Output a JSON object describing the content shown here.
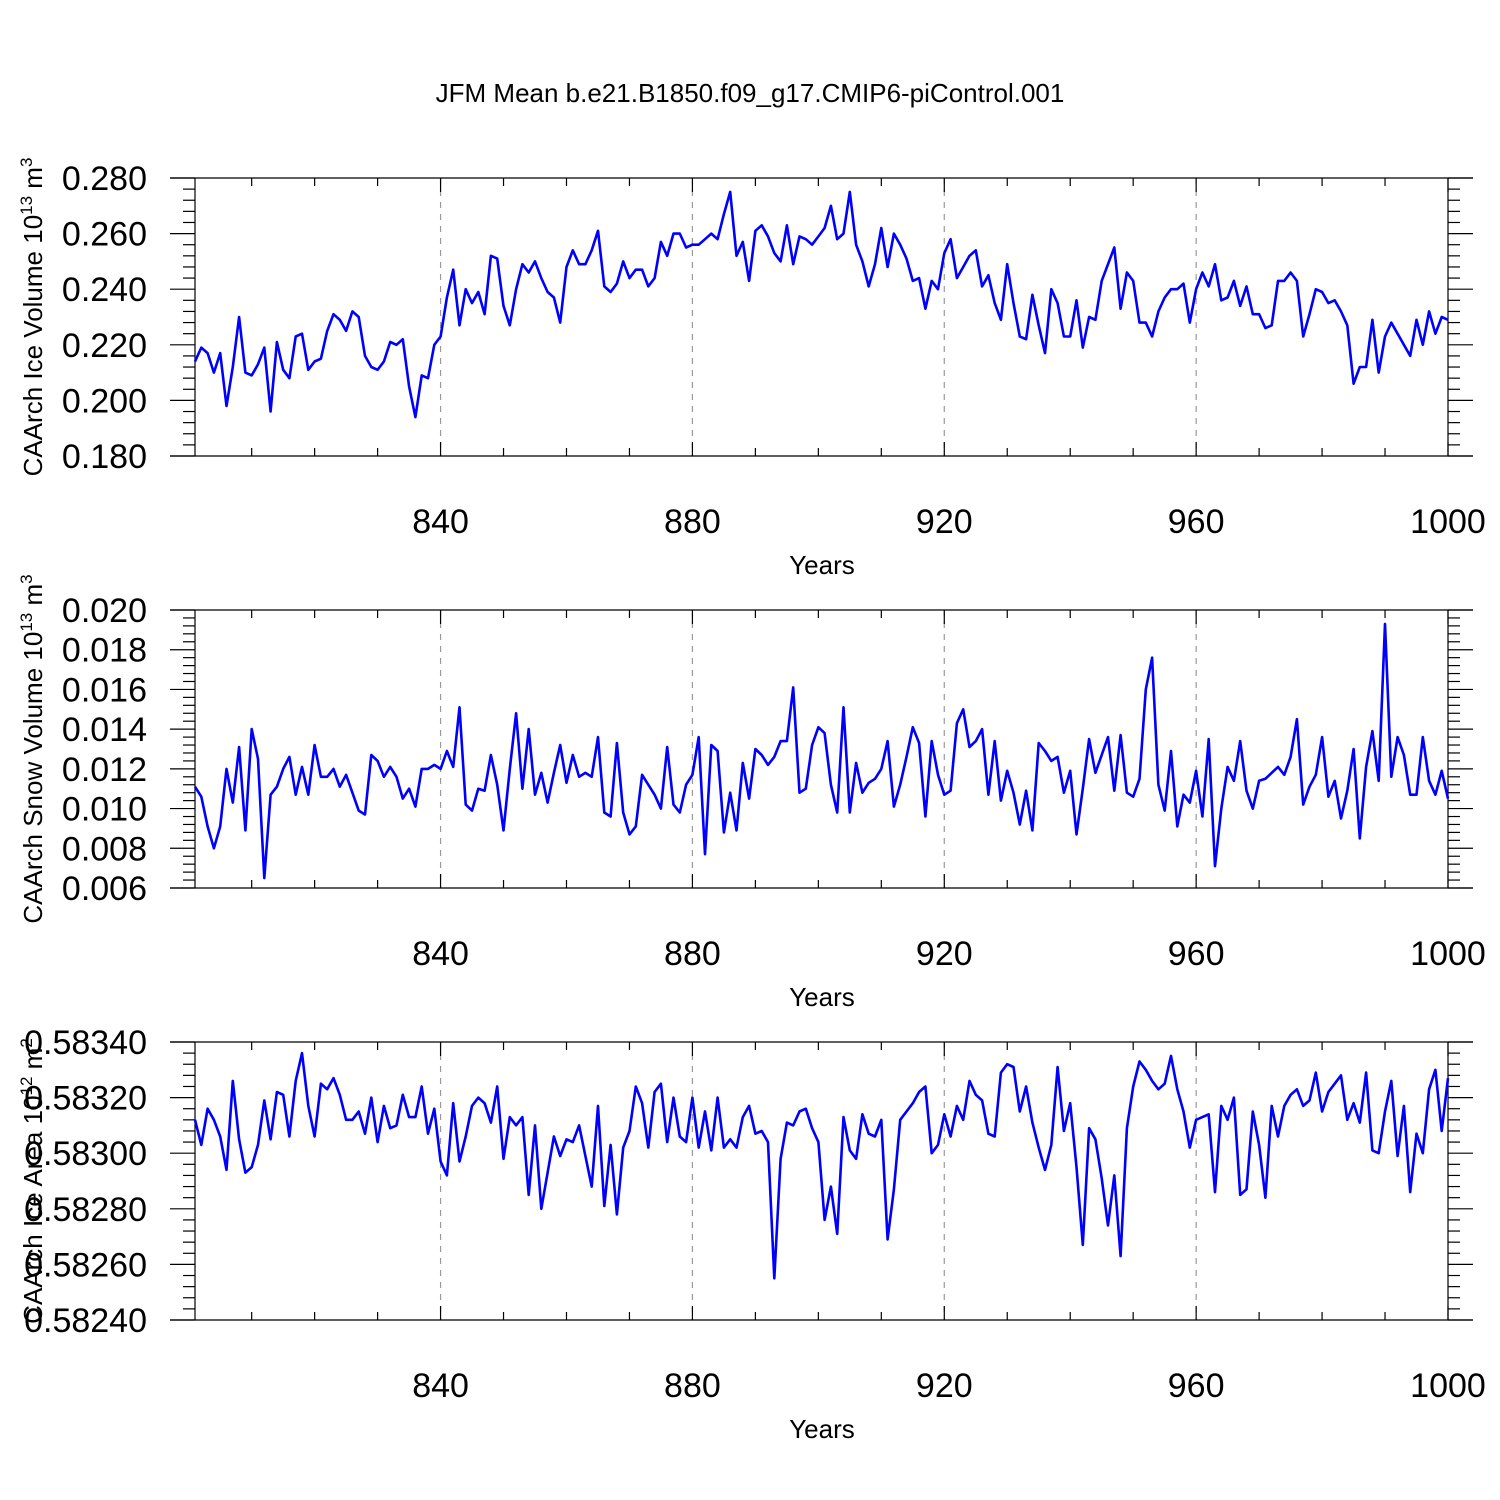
{
  "title": "JFM Mean b.e21.B1850.f09_g17.CMIP6-piControl.001",
  "line_color": "#0000ff",
  "chart_data": [
    {
      "type": "line",
      "xlabel": "Years",
      "ylabel_main": "CAArch Ice Volume 10",
      "ylabel_sup1": "13",
      "ylabel_unit": " m",
      "ylabel_sup2": "3",
      "xlim": [
        801,
        1000
      ],
      "ylim": [
        0.18,
        0.28
      ],
      "xticks": [
        840,
        880,
        920,
        960,
        1000
      ],
      "yticks": [
        "0.180",
        "0.200",
        "0.220",
        "0.240",
        "0.260",
        "0.280"
      ],
      "x_start": 801,
      "values": [
        0.214,
        0.219,
        0.217,
        0.21,
        0.217,
        0.198,
        0.212,
        0.23,
        0.21,
        0.209,
        0.213,
        0.219,
        0.196,
        0.221,
        0.211,
        0.208,
        0.223,
        0.224,
        0.211,
        0.214,
        0.215,
        0.225,
        0.231,
        0.229,
        0.225,
        0.232,
        0.23,
        0.216,
        0.212,
        0.211,
        0.214,
        0.221,
        0.22,
        0.222,
        0.205,
        0.194,
        0.209,
        0.208,
        0.22,
        0.223,
        0.237,
        0.247,
        0.227,
        0.24,
        0.235,
        0.239,
        0.231,
        0.252,
        0.251,
        0.234,
        0.227,
        0.24,
        0.249,
        0.246,
        0.25,
        0.244,
        0.239,
        0.237,
        0.228,
        0.248,
        0.254,
        0.249,
        0.249,
        0.254,
        0.261,
        0.241,
        0.239,
        0.242,
        0.25,
        0.244,
        0.247,
        0.247,
        0.241,
        0.244,
        0.257,
        0.252,
        0.26,
        0.26,
        0.255,
        0.256,
        0.256,
        0.258,
        0.26,
        0.258,
        0.267,
        0.275,
        0.252,
        0.257,
        0.243,
        0.261,
        0.263,
        0.259,
        0.253,
        0.25,
        0.263,
        0.249,
        0.259,
        0.258,
        0.256,
        0.259,
        0.262,
        0.27,
        0.258,
        0.26,
        0.275,
        0.256,
        0.25,
        0.241,
        0.249,
        0.262,
        0.248,
        0.26,
        0.256,
        0.251,
        0.243,
        0.244,
        0.233,
        0.243,
        0.24,
        0.253,
        0.258,
        0.244,
        0.248,
        0.252,
        0.254,
        0.241,
        0.245,
        0.235,
        0.229,
        0.249,
        0.235,
        0.223,
        0.222,
        0.238,
        0.227,
        0.217,
        0.24,
        0.235,
        0.223,
        0.223,
        0.236,
        0.219,
        0.23,
        0.229,
        0.243,
        0.249,
        0.255,
        0.233,
        0.246,
        0.243,
        0.228,
        0.228,
        0.223,
        0.232,
        0.237,
        0.24,
        0.24,
        0.242,
        0.228,
        0.24,
        0.246,
        0.241,
        0.249,
        0.236,
        0.237,
        0.243,
        0.234,
        0.241,
        0.231,
        0.231,
        0.226,
        0.227,
        0.243,
        0.243,
        0.246,
        0.243,
        0.223,
        0.231,
        0.24,
        0.239,
        0.235,
        0.236,
        0.232,
        0.227,
        0.206,
        0.212,
        0.212,
        0.229,
        0.21,
        0.223,
        0.228,
        0.224,
        0.22,
        0.216,
        0.229,
        0.22,
        0.232,
        0.224,
        0.23,
        0.229
      ]
    },
    {
      "type": "line",
      "xlabel": "Years",
      "ylabel_main": "CAArch Snow Volume 10",
      "ylabel_sup1": "13",
      "ylabel_unit": " m",
      "ylabel_sup2": "3",
      "xlim": [
        801,
        1000
      ],
      "ylim": [
        0.006,
        0.02
      ],
      "xticks": [
        840,
        880,
        920,
        960,
        1000
      ],
      "yticks": [
        "0.006",
        "0.008",
        "0.010",
        "0.012",
        "0.014",
        "0.016",
        "0.018",
        "0.020"
      ],
      "x_start": 801,
      "values": [
        0.0111,
        0.0106,
        0.0091,
        0.008,
        0.0091,
        0.012,
        0.0103,
        0.0131,
        0.0089,
        0.014,
        0.0125,
        0.0065,
        0.0107,
        0.0111,
        0.012,
        0.0126,
        0.0107,
        0.0121,
        0.0107,
        0.0132,
        0.0116,
        0.0116,
        0.012,
        0.0111,
        0.0117,
        0.0108,
        0.0099,
        0.0097,
        0.0127,
        0.0124,
        0.0116,
        0.0121,
        0.0116,
        0.0105,
        0.011,
        0.0101,
        0.012,
        0.012,
        0.0122,
        0.012,
        0.0129,
        0.0121,
        0.0151,
        0.0102,
        0.0099,
        0.011,
        0.0109,
        0.0127,
        0.0112,
        0.0089,
        0.012,
        0.0148,
        0.011,
        0.014,
        0.0107,
        0.0118,
        0.0103,
        0.0118,
        0.0132,
        0.0113,
        0.0127,
        0.0116,
        0.0118,
        0.0116,
        0.0136,
        0.0098,
        0.0096,
        0.0133,
        0.0098,
        0.0087,
        0.0091,
        0.0117,
        0.0112,
        0.0107,
        0.01,
        0.0131,
        0.0102,
        0.0098,
        0.0112,
        0.0117,
        0.0136,
        0.0077,
        0.0132,
        0.0129,
        0.0088,
        0.0108,
        0.0089,
        0.0123,
        0.0105,
        0.013,
        0.0127,
        0.0122,
        0.0126,
        0.0134,
        0.0134,
        0.0161,
        0.0108,
        0.011,
        0.0132,
        0.0141,
        0.0138,
        0.0112,
        0.0098,
        0.0151,
        0.0098,
        0.0123,
        0.0108,
        0.0113,
        0.0115,
        0.012,
        0.0134,
        0.0101,
        0.0112,
        0.0126,
        0.0141,
        0.0133,
        0.0096,
        0.0134,
        0.0117,
        0.0107,
        0.0109,
        0.0143,
        0.015,
        0.0131,
        0.0134,
        0.014,
        0.0107,
        0.0134,
        0.0104,
        0.0119,
        0.0108,
        0.0092,
        0.0109,
        0.0089,
        0.0133,
        0.0129,
        0.0124,
        0.0126,
        0.0108,
        0.0119,
        0.0087,
        0.011,
        0.0135,
        0.0118,
        0.0127,
        0.0136,
        0.0109,
        0.0137,
        0.0108,
        0.0106,
        0.0115,
        0.016,
        0.0176,
        0.0112,
        0.0099,
        0.0129,
        0.0091,
        0.0107,
        0.0103,
        0.0119,
        0.0096,
        0.0135,
        0.0071,
        0.01,
        0.0121,
        0.0114,
        0.0134,
        0.0109,
        0.01,
        0.0114,
        0.0115,
        0.0118,
        0.0121,
        0.0117,
        0.0126,
        0.0145,
        0.0102,
        0.0111,
        0.0117,
        0.0136,
        0.0106,
        0.0114,
        0.0095,
        0.0109,
        0.013,
        0.0085,
        0.0121,
        0.0139,
        0.0114,
        0.0193,
        0.0116,
        0.0136,
        0.0127,
        0.0107,
        0.0107,
        0.0136,
        0.0114,
        0.0107,
        0.0119,
        0.0105
      ]
    },
    {
      "type": "line",
      "xlabel": "Years",
      "ylabel_main": "CAArch Ice Area 10",
      "ylabel_sup1": "12",
      "ylabel_unit": " m",
      "ylabel_sup2": "2",
      "xlim": [
        801,
        1000
      ],
      "ylim": [
        0.5824,
        0.5834
      ],
      "xticks": [
        840,
        880,
        920,
        960,
        1000
      ],
      "yticks": [
        "0.58240",
        "0.58260",
        "0.58280",
        "0.58300",
        "0.58320",
        "0.58340"
      ],
      "x_start": 801,
      "values": [
        0.58312,
        0.58303,
        0.58316,
        0.58312,
        0.58306,
        0.58294,
        0.58326,
        0.58305,
        0.58293,
        0.58295,
        0.58303,
        0.58319,
        0.58305,
        0.58322,
        0.58321,
        0.58306,
        0.58326,
        0.58336,
        0.58317,
        0.58306,
        0.58325,
        0.58323,
        0.58327,
        0.58321,
        0.58312,
        0.58312,
        0.58315,
        0.58307,
        0.5832,
        0.58304,
        0.58317,
        0.58309,
        0.5831,
        0.58321,
        0.58313,
        0.58313,
        0.58324,
        0.58307,
        0.58316,
        0.58297,
        0.58292,
        0.58318,
        0.58297,
        0.58306,
        0.58317,
        0.5832,
        0.58318,
        0.58311,
        0.58324,
        0.58298,
        0.58313,
        0.5831,
        0.58313,
        0.58285,
        0.5831,
        0.5828,
        0.58293,
        0.58306,
        0.58299,
        0.58305,
        0.58304,
        0.5831,
        0.58299,
        0.58288,
        0.58317,
        0.58281,
        0.58303,
        0.58278,
        0.58302,
        0.58308,
        0.58324,
        0.58318,
        0.58302,
        0.58322,
        0.58325,
        0.58304,
        0.5832,
        0.58306,
        0.58304,
        0.5832,
        0.58302,
        0.58315,
        0.58301,
        0.5832,
        0.58302,
        0.58305,
        0.58302,
        0.58313,
        0.58317,
        0.58307,
        0.58308,
        0.58304,
        0.58255,
        0.58298,
        0.58311,
        0.5831,
        0.58315,
        0.58316,
        0.58309,
        0.58304,
        0.58276,
        0.58288,
        0.58271,
        0.58313,
        0.58301,
        0.58298,
        0.58314,
        0.58307,
        0.58306,
        0.58312,
        0.58269,
        0.58287,
        0.58312,
        0.58315,
        0.58318,
        0.58322,
        0.58324,
        0.583,
        0.58303,
        0.58314,
        0.58306,
        0.58317,
        0.58312,
        0.58326,
        0.58321,
        0.58319,
        0.58307,
        0.58306,
        0.58329,
        0.58332,
        0.58331,
        0.58315,
        0.58324,
        0.58311,
        0.58302,
        0.58294,
        0.58303,
        0.58331,
        0.58308,
        0.58318,
        0.58295,
        0.58267,
        0.58309,
        0.58305,
        0.58291,
        0.58274,
        0.58292,
        0.58263,
        0.58309,
        0.58324,
        0.58333,
        0.5833,
        0.58326,
        0.58323,
        0.58325,
        0.58335,
        0.58323,
        0.58315,
        0.58302,
        0.58312,
        0.58313,
        0.58314,
        0.58286,
        0.58317,
        0.58312,
        0.5832,
        0.58285,
        0.58287,
        0.58315,
        0.58303,
        0.58284,
        0.58317,
        0.58306,
        0.58317,
        0.58321,
        0.58323,
        0.58317,
        0.58319,
        0.58329,
        0.58315,
        0.58322,
        0.58325,
        0.58328,
        0.58312,
        0.58318,
        0.58311,
        0.58329,
        0.58301,
        0.583,
        0.58315,
        0.58326,
        0.58299,
        0.58317,
        0.58286,
        0.58307,
        0.583,
        0.58323,
        0.5833,
        0.58308,
        0.58327
      ]
    }
  ]
}
